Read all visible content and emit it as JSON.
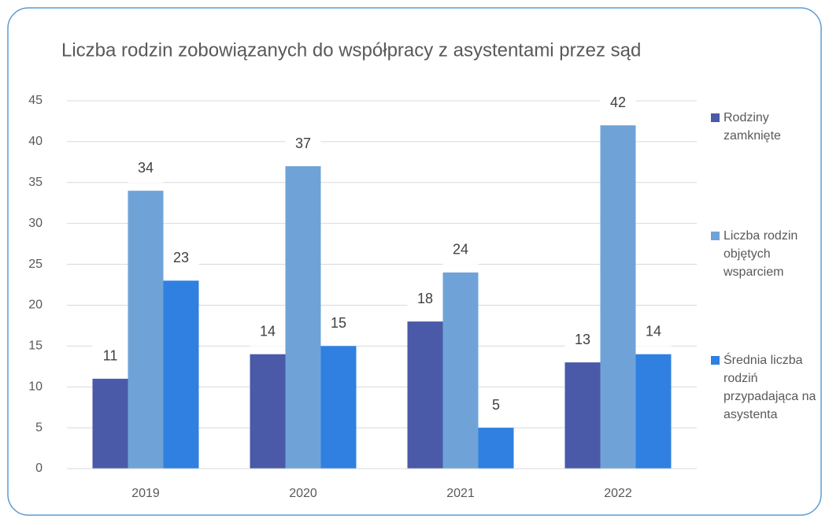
{
  "chart_data": {
    "type": "bar",
    "title": "Liczba rodzin zobowiązanych do współpracy z asystentami przez sąd",
    "categories": [
      "2019",
      "2020",
      "2021",
      "2022"
    ],
    "series": [
      {
        "name": "Rodziny zamknięte",
        "color": "#4a5aa8",
        "values": [
          11,
          14,
          18,
          13
        ]
      },
      {
        "name": "Liczba rodzin objętych wsparciem",
        "color": "#6fa3d8",
        "values": [
          34,
          37,
          24,
          42
        ]
      },
      {
        "name": "Średnia liczba rodziń przypadająca na asystenta",
        "color": "#2f80e0",
        "values": [
          23,
          15,
          5,
          14
        ]
      }
    ],
    "ylim": [
      0,
      45
    ],
    "yticks": [
      0,
      5,
      10,
      15,
      20,
      25,
      30,
      35,
      40,
      45
    ],
    "grid": true,
    "legend": "right"
  }
}
